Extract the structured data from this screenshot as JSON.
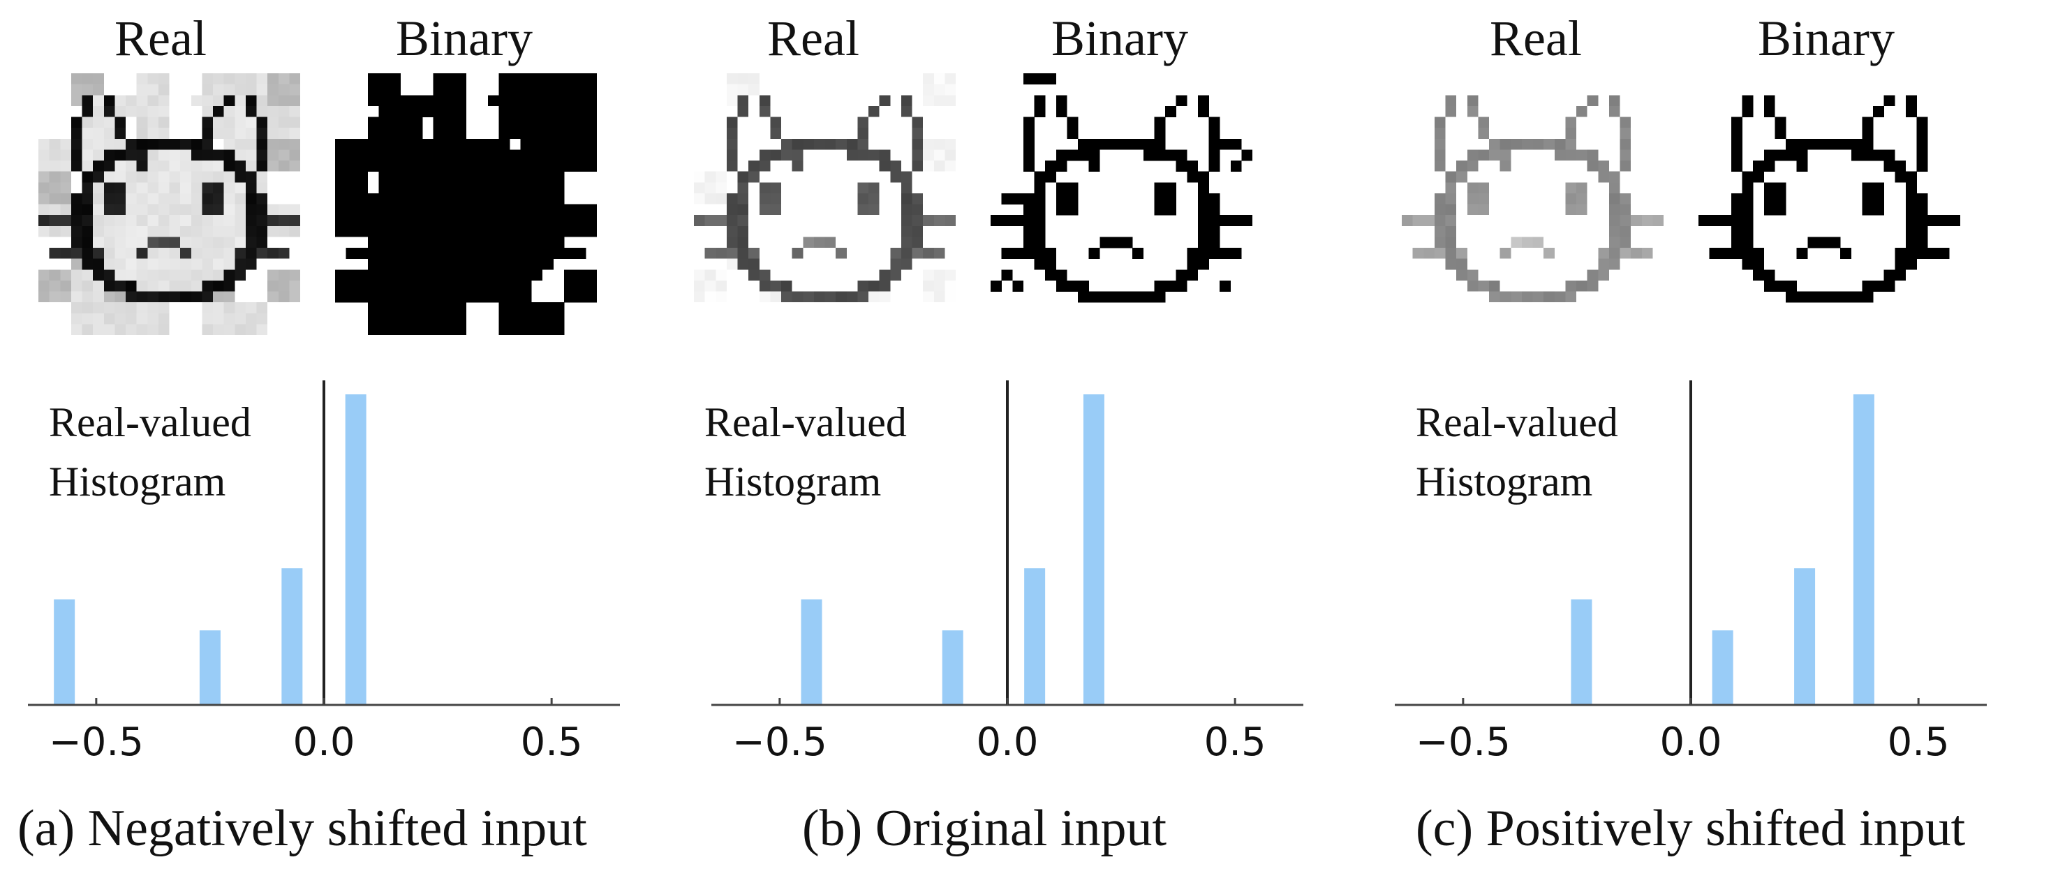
{
  "panels": [
    {
      "real_label": "Real",
      "binary_label": "Binary",
      "shift": -0.2,
      "hist_label_1": "Real-valued",
      "hist_label_2": "Histogram",
      "caption": "(a) Negatively shifted input"
    },
    {
      "real_label": "Real",
      "binary_label": "Binary",
      "shift": 0.0,
      "hist_label_1": "Real-valued",
      "hist_label_2": "Histogram",
      "caption": "(b) Original input"
    },
    {
      "real_label": "Real",
      "binary_label": "Binary",
      "shift": 0.2,
      "hist_label_1": "Real-valued",
      "hist_label_2": "Histogram",
      "caption": "(c) Positively shifted input"
    }
  ],
  "chart_data": [
    {
      "type": "bar",
      "x": [
        -0.57,
        -0.25,
        -0.07,
        0.07
      ],
      "values": [
        0.34,
        0.24,
        0.44,
        1.0
      ],
      "xlim": [
        -0.65,
        0.65
      ],
      "xticks": [
        -0.5,
        0.0,
        0.5
      ],
      "xtick_labels": [
        "−0.5",
        "0.0",
        "0.5"
      ],
      "vline": 0.0,
      "color": "#99ccf7",
      "annotation": "Real-valued Histogram"
    },
    {
      "type": "bar",
      "x": [
        -0.43,
        -0.12,
        0.06,
        0.19
      ],
      "values": [
        0.34,
        0.24,
        0.44,
        1.0
      ],
      "xlim": [
        -0.65,
        0.65
      ],
      "xticks": [
        -0.5,
        0.0,
        0.5
      ],
      "xtick_labels": [
        "−0.5",
        "0.0",
        "0.5"
      ],
      "vline": 0.0,
      "color": "#99ccf7",
      "annotation": "Real-valued Histogram"
    },
    {
      "type": "bar",
      "x": [
        -0.24,
        0.07,
        0.25,
        0.38
      ],
      "values": [
        0.34,
        0.24,
        0.44,
        1.0
      ],
      "xlim": [
        -0.65,
        0.65
      ],
      "xticks": [
        -0.5,
        0.0,
        0.5
      ],
      "xtick_labels": [
        "−0.5",
        "0.0",
        "0.5"
      ],
      "vline": 0.0,
      "color": "#99ccf7",
      "annotation": "Real-valued Histogram"
    }
  ]
}
